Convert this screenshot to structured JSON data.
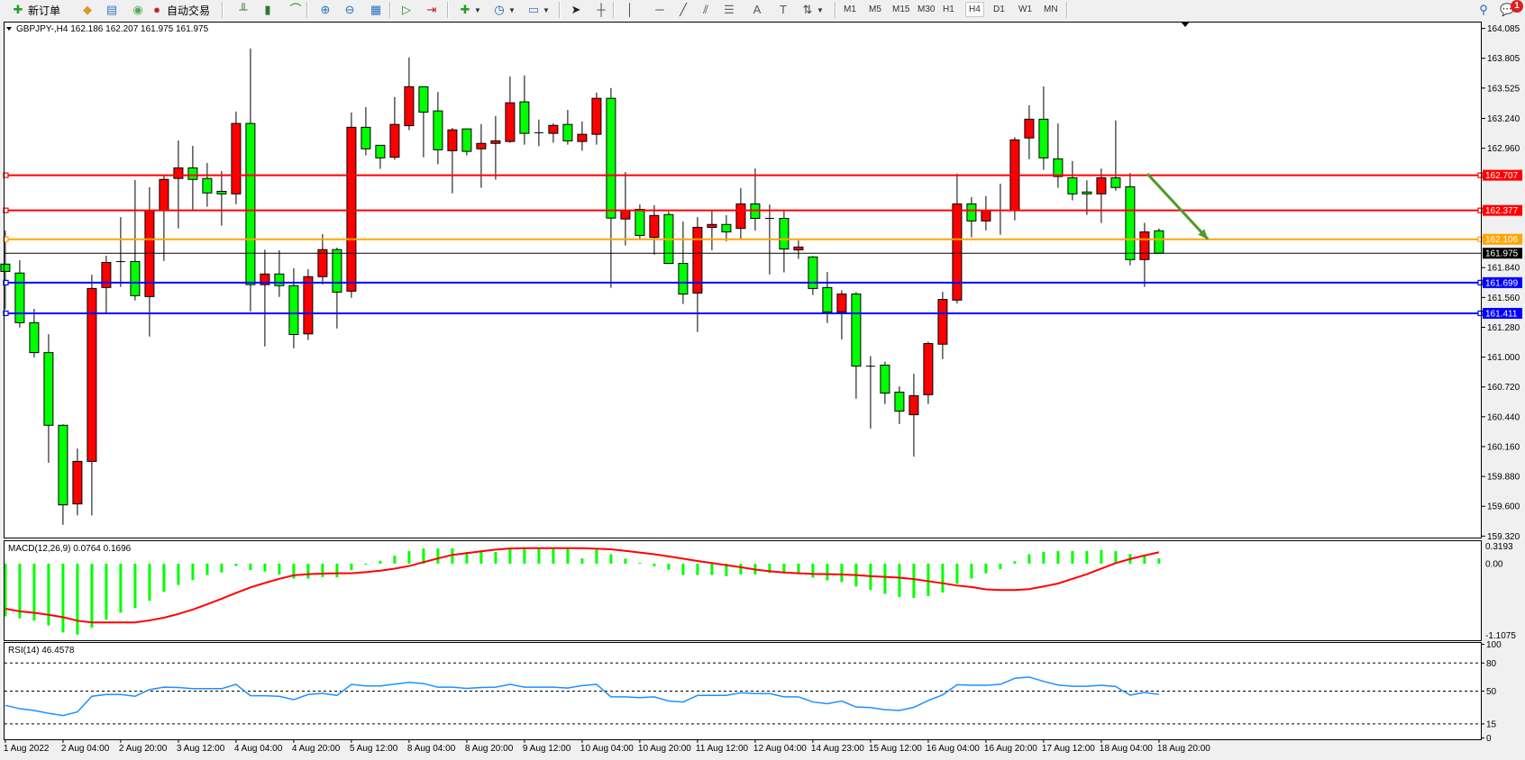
{
  "toolbar": {
    "new_order_label": "新订单",
    "auto_trading_label": "自动交易",
    "icons": [
      {
        "name": "new-order-icon",
        "glyph": "📄",
        "color": "#2a9a2a"
      },
      {
        "name": "market-watch-icon",
        "glyph": "◆",
        "color": "#d49a2a"
      },
      {
        "name": "terminal-icon",
        "glyph": "▤",
        "color": "#3a78c8"
      },
      {
        "name": "signals-icon",
        "glyph": "◉",
        "color": "#58a858"
      },
      {
        "name": "auto-trading-icon",
        "glyph": "●",
        "color": "#d02020"
      },
      {
        "name": "bar-chart-icon",
        "glyph": "╨",
        "color": "#2a7a2a"
      },
      {
        "name": "candlestick-icon",
        "glyph": "▮",
        "color": "#2a7a2a"
      },
      {
        "name": "line-chart-icon",
        "glyph": "⌒",
        "color": "#2a7a2a"
      },
      {
        "name": "zoom-in-icon",
        "glyph": "⊕",
        "color": "#2a70c0"
      },
      {
        "name": "zoom-out-icon",
        "glyph": "⊖",
        "color": "#2a70c0"
      },
      {
        "name": "tile-windows-icon",
        "glyph": "▦",
        "color": "#2a70c0"
      },
      {
        "name": "auto-scroll-icon",
        "glyph": "▷",
        "color": "#2a8a2a"
      },
      {
        "name": "chart-shift-icon",
        "glyph": "⇥",
        "color": "#c02020"
      },
      {
        "name": "indicators-icon",
        "glyph": "✚",
        "color": "#2a9a2a"
      },
      {
        "name": "periods-clock-icon",
        "glyph": "◷",
        "color": "#1a60b0"
      },
      {
        "name": "templates-icon",
        "glyph": "▭",
        "color": "#3a78c8"
      },
      {
        "name": "cursor-icon",
        "glyph": "➤",
        "color": "#222"
      },
      {
        "name": "crosshair-icon",
        "glyph": "┼",
        "color": "#444"
      },
      {
        "name": "vertical-line-icon",
        "glyph": "│",
        "color": "#444"
      },
      {
        "name": "horizontal-line-icon",
        "glyph": "─",
        "color": "#444"
      },
      {
        "name": "trendline-icon",
        "glyph": "╱",
        "color": "#444"
      },
      {
        "name": "equidistant-channel-icon",
        "glyph": "⫽",
        "color": "#444"
      },
      {
        "name": "fibonacci-icon",
        "glyph": "☰",
        "color": "#666"
      },
      {
        "name": "text-icon",
        "glyph": "A",
        "color": "#555"
      },
      {
        "name": "text-label-icon",
        "glyph": "T",
        "color": "#555"
      },
      {
        "name": "arrows-icon",
        "glyph": "⇅",
        "color": "#444"
      }
    ],
    "timeframes": [
      "M1",
      "M5",
      "M15",
      "M30",
      "H1",
      "H4",
      "D1",
      "W1",
      "MN"
    ],
    "active_timeframe": "H4",
    "search_icon": "search-icon",
    "notification_count": "1"
  },
  "chart": {
    "symbol_info": "GBPJPY-,H4  162.186 162.207 161.975 161.975",
    "bull_color": "#ff0000",
    "bear_color": "#00ff00",
    "background": "#ffffff"
  },
  "chart_data": [
    {
      "type": "candlestick",
      "symbol": "GBPJPY-",
      "timeframe": "H4",
      "ylim": [
        159.306,
        164.149
      ],
      "y_tick_labels": [
        "164.085",
        "163.805",
        "163.525",
        "163.240",
        "162.960",
        "161.840",
        "161.560",
        "161.280",
        "161.000",
        "160.720",
        "160.440",
        "160.160",
        "159.880",
        "159.600",
        "159.320"
      ],
      "x_tick_labels": [
        {
          "bar": 0,
          "label": "1 Aug 2022"
        },
        {
          "bar": 4,
          "label": "2 Aug 04:00"
        },
        {
          "bar": 8,
          "label": "2 Aug 20:00"
        },
        {
          "bar": 12,
          "label": "3 Aug 12:00"
        },
        {
          "bar": 16,
          "label": "4 Aug 04:00"
        },
        {
          "bar": 20,
          "label": "4 Aug 20:00"
        },
        {
          "bar": 24,
          "label": "5 Aug 12:00"
        },
        {
          "bar": 28,
          "label": "8 Aug 04:00"
        },
        {
          "bar": 32,
          "label": "8 Aug 20:00"
        },
        {
          "bar": 36,
          "label": "9 Aug 12:00"
        },
        {
          "bar": 40,
          "label": "10 Aug 04:00"
        },
        {
          "bar": 44,
          "label": "10 Aug 20:00"
        },
        {
          "bar": 48,
          "label": "11 Aug 12:00"
        },
        {
          "bar": 52,
          "label": "12 Aug 04:00"
        },
        {
          "bar": 56,
          "label": "14 Aug 23:00"
        },
        {
          "bar": 60,
          "label": "15 Aug 12:00"
        },
        {
          "bar": 64,
          "label": "16 Aug 04:00"
        },
        {
          "bar": 68,
          "label": "16 Aug 20:00"
        },
        {
          "bar": 72,
          "label": "17 Aug 12:00"
        },
        {
          "bar": 76,
          "label": "18 Aug 04:00"
        },
        {
          "bar": 80,
          "label": "18 Aug 20:00"
        }
      ],
      "ohlc": [
        [
          161.873,
          162.187,
          161.447,
          161.804
        ],
        [
          161.789,
          161.909,
          161.278,
          161.323
        ],
        [
          161.323,
          161.453,
          160.997,
          161.042
        ],
        [
          161.042,
          161.215,
          160.009,
          160.36
        ],
        [
          160.36,
          160.369,
          159.426,
          159.613
        ],
        [
          159.622,
          160.142,
          159.514,
          160.021
        ],
        [
          160.021,
          161.773,
          159.514,
          161.644
        ],
        [
          161.653,
          161.952,
          161.417,
          161.888
        ],
        [
          161.897,
          162.314,
          161.659,
          161.897
        ],
        [
          161.897,
          162.662,
          161.532,
          161.577
        ],
        [
          161.568,
          162.595,
          161.193,
          162.377
        ],
        [
          162.377,
          162.71,
          161.903,
          162.668
        ],
        [
          162.677,
          163.033,
          162.208,
          162.776
        ],
        [
          162.776,
          162.982,
          162.384,
          162.668
        ],
        [
          162.677,
          162.822,
          162.411,
          162.541
        ],
        [
          162.556,
          162.746,
          162.233,
          162.532
        ],
        [
          162.532,
          163.305,
          162.435,
          163.193
        ],
        [
          163.193,
          163.897,
          161.429,
          161.68
        ],
        [
          161.68,
          162.009,
          161.1,
          161.78
        ],
        [
          161.78,
          162.003,
          161.565,
          161.671
        ],
        [
          161.671,
          161.834,
          161.082,
          161.212
        ],
        [
          161.218,
          161.825,
          161.16,
          161.755
        ],
        [
          161.755,
          162.154,
          161.683,
          162.009
        ],
        [
          162.009,
          162.027,
          161.269,
          161.61
        ],
        [
          161.619,
          163.296,
          161.556,
          163.157
        ],
        [
          163.157,
          163.347,
          162.894,
          162.955
        ],
        [
          162.988,
          162.988,
          162.767,
          162.87
        ],
        [
          162.876,
          163.441,
          162.852,
          163.184
        ],
        [
          163.172,
          163.813,
          163.13,
          163.538
        ],
        [
          163.538,
          163.538,
          162.876,
          163.299
        ],
        [
          163.311,
          163.489,
          162.81,
          162.946
        ],
        [
          162.937,
          163.151,
          162.538,
          163.133
        ],
        [
          163.142,
          163.142,
          162.894,
          162.931
        ],
        [
          162.955,
          163.187,
          162.589,
          163.006
        ],
        [
          163.006,
          163.263,
          162.665,
          163.03
        ],
        [
          163.024,
          163.634,
          163.012,
          163.387
        ],
        [
          163.396,
          163.644,
          162.994,
          163.1
        ],
        [
          163.106,
          163.23,
          162.979,
          163.106
        ],
        [
          163.1,
          163.193,
          163.012,
          163.175
        ],
        [
          163.184,
          163.32,
          162.994,
          163.03
        ],
        [
          163.024,
          163.212,
          162.937,
          163.091
        ],
        [
          163.091,
          163.483,
          162.994,
          163.429
        ],
        [
          163.429,
          163.526,
          161.65,
          162.305
        ],
        [
          162.296,
          162.737,
          162.048,
          162.377
        ],
        [
          162.387,
          162.432,
          162.112,
          162.142
        ],
        [
          162.124,
          162.426,
          161.961,
          162.329
        ],
        [
          162.338,
          162.365,
          161.879,
          161.879
        ],
        [
          161.879,
          162.272,
          161.499,
          161.592
        ],
        [
          161.601,
          162.314,
          161.236,
          162.218
        ],
        [
          162.218,
          162.377,
          162.003,
          162.245
        ],
        [
          162.245,
          162.332,
          162.088,
          162.175
        ],
        [
          162.208,
          162.586,
          162.109,
          162.438
        ],
        [
          162.438,
          162.77,
          162.187,
          162.302
        ],
        [
          162.302,
          162.432,
          161.776,
          162.302
        ],
        [
          162.302,
          162.369,
          161.795,
          162.015
        ],
        [
          162.006,
          162.094,
          161.922,
          162.033
        ],
        [
          161.94,
          161.949,
          161.583,
          161.644
        ],
        [
          161.653,
          161.798,
          161.32,
          161.423
        ],
        [
          161.423,
          161.628,
          161.166,
          161.592
        ],
        [
          161.592,
          161.61,
          160.61,
          160.915
        ],
        [
          160.915,
          161.009,
          160.329,
          160.915
        ],
        [
          160.924,
          160.958,
          160.559,
          160.662
        ],
        [
          160.671,
          160.725,
          160.372,
          160.493
        ],
        [
          160.459,
          160.843,
          160.066,
          160.637
        ],
        [
          160.647,
          161.145,
          160.559,
          161.127
        ],
        [
          161.121,
          161.613,
          160.982,
          161.541
        ],
        [
          161.535,
          162.722,
          161.505,
          162.438
        ],
        [
          162.438,
          162.502,
          162.124,
          162.278
        ],
        [
          162.278,
          162.511,
          162.19,
          162.377
        ],
        [
          162.377,
          162.628,
          162.148,
          162.377
        ],
        [
          162.377,
          163.063,
          162.284,
          163.039
        ],
        [
          163.057,
          163.363,
          162.858,
          163.233
        ],
        [
          163.233,
          163.541,
          162.758,
          162.87
        ],
        [
          162.861,
          163.193,
          162.589,
          162.695
        ],
        [
          162.683,
          162.84,
          162.471,
          162.532
        ],
        [
          162.55,
          162.659,
          162.335,
          162.532
        ],
        [
          162.532,
          162.77,
          162.26,
          162.683
        ],
        [
          162.683,
          163.221,
          162.562,
          162.592
        ],
        [
          162.598,
          162.728,
          161.861,
          161.915
        ],
        [
          161.915,
          162.26,
          161.659,
          162.175
        ],
        [
          162.186,
          162.207,
          161.975,
          161.975
        ]
      ],
      "horizontal_lines": [
        {
          "price": 162.707,
          "label": "162.707",
          "color": "#ff0000"
        },
        {
          "price": 162.377,
          "label": "162.377",
          "color": "#ff0000"
        },
        {
          "price": 162.106,
          "label": "162.106",
          "color": "#ffa500"
        },
        {
          "price": 161.699,
          "label": "161.699",
          "color": "#0000ff"
        },
        {
          "price": 161.411,
          "label": "161.411",
          "color": "#0000ff"
        }
      ],
      "current_price": {
        "price": 161.975,
        "label": "161.975",
        "color": "#000000"
      },
      "arrow": {
        "from": {
          "bar": 79.2,
          "price": 162.72
        },
        "to": {
          "bar": 83.4,
          "price": 162.106
        },
        "color": "#4e9a2c"
      }
    },
    {
      "type": "bar",
      "indicator": "MACD",
      "label": "MACD(12,26,9) 0.0764 0.1696",
      "ylim": [
        -1.1075,
        0.3193
      ],
      "y_tick_labels": [
        "0.3193",
        "0.00",
        "-1.1075"
      ],
      "histogram_color": "#00ff00",
      "signal_color": "#ff0000",
      "histogram": [
        -0.779,
        -0.81,
        -0.844,
        -0.914,
        -1.018,
        -1.052,
        -0.948,
        -0.831,
        -0.727,
        -0.658,
        -0.55,
        -0.416,
        -0.316,
        -0.242,
        -0.169,
        -0.13,
        -0.035,
        -0.095,
        -0.117,
        -0.16,
        -0.221,
        -0.221,
        -0.199,
        -0.203,
        -0.095,
        -0.009,
        0.043,
        0.117,
        0.186,
        0.225,
        0.225,
        0.229,
        0.173,
        0.173,
        0.173,
        0.234,
        0.238,
        0.225,
        0.225,
        0.225,
        0.078,
        0.208,
        0.139,
        0.074,
        0.013,
        -0.039,
        -0.091,
        -0.169,
        -0.169,
        -0.169,
        -0.186,
        -0.16,
        -0.16,
        -0.139,
        -0.143,
        -0.156,
        -0.208,
        -0.247,
        -0.273,
        -0.338,
        -0.39,
        -0.446,
        -0.494,
        -0.507,
        -0.481,
        -0.429,
        -0.299,
        -0.221,
        -0.143,
        -0.082,
        0.035,
        0.139,
        0.173,
        0.186,
        0.186,
        0.186,
        0.199,
        0.186,
        0.143,
        0.113,
        0.0764
      ],
      "signal": [
        -0.667,
        -0.706,
        -0.727,
        -0.758,
        -0.793,
        -0.845,
        -0.87,
        -0.87,
        -0.87,
        -0.87,
        -0.84,
        -0.801,
        -0.745,
        -0.68,
        -0.602,
        -0.52,
        -0.433,
        -0.351,
        -0.286,
        -0.225,
        -0.173,
        -0.156,
        -0.147,
        -0.143,
        -0.143,
        -0.126,
        -0.104,
        -0.074,
        -0.035,
        0.022,
        0.078,
        0.13,
        0.156,
        0.182,
        0.208,
        0.225,
        0.229,
        0.229,
        0.229,
        0.229,
        0.229,
        0.221,
        0.212,
        0.19,
        0.165,
        0.139,
        0.108,
        0.074,
        0.039,
        0.009,
        -0.022,
        -0.052,
        -0.087,
        -0.113,
        -0.13,
        -0.143,
        -0.152,
        -0.156,
        -0.16,
        -0.169,
        -0.186,
        -0.195,
        -0.208,
        -0.229,
        -0.26,
        -0.29,
        -0.325,
        -0.346,
        -0.381,
        -0.39,
        -0.39,
        -0.377,
        -0.338,
        -0.294,
        -0.225,
        -0.156,
        -0.074,
        0.009,
        0.069,
        0.121,
        0.1696
      ]
    },
    {
      "type": "line",
      "indicator": "RSI",
      "label": "RSI(14) 46.4578",
      "ylim": [
        0,
        100
      ],
      "y_tick_labels": [
        "100",
        "80",
        "50",
        "15",
        "0"
      ],
      "levels": [
        80,
        50,
        15
      ],
      "color": "#1e90ff",
      "values": [
        34.8,
        31.2,
        29.3,
        26.3,
        23.9,
        27.8,
        44.5,
        46.4,
        46.4,
        44.5,
        51.6,
        54.2,
        53.9,
        52.6,
        52.6,
        52.6,
        57.2,
        45.1,
        45.1,
        44.5,
        40.9,
        46.4,
        47.6,
        45.4,
        57.2,
        55.5,
        55.5,
        57.5,
        59.4,
        58.1,
        54.2,
        54.2,
        52.9,
        53.9,
        54.2,
        57.2,
        54.2,
        54.2,
        54.2,
        53.3,
        55.9,
        57.2,
        43.9,
        43.9,
        43.0,
        43.9,
        39.4,
        38.4,
        45.4,
        45.4,
        45.4,
        48.2,
        47.3,
        47.3,
        43.9,
        43.9,
        38.4,
        36.6,
        39.4,
        33.0,
        32.4,
        30.2,
        29.3,
        32.7,
        40.0,
        46.0,
        56.8,
        56.2,
        56.2,
        57.2,
        63.7,
        65.0,
        60.4,
        56.5,
        55.2,
        55.2,
        56.2,
        54.9,
        45.7,
        48.5,
        46.4578
      ]
    }
  ]
}
